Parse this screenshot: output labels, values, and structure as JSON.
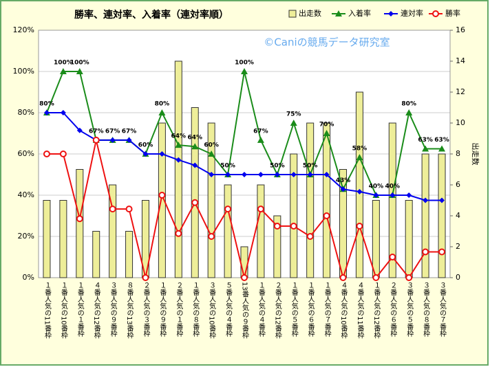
{
  "chart_data": {
    "type": "combo",
    "title": "勝率、連対率、入着率（連対率順）",
    "annotation": "©Caniの競馬データ研究室",
    "y2label": "出走数",
    "categories": [
      "１番人気の11番枠",
      "１番人気の10番枠",
      "１番人気の１番枠",
      "４番人気の12番枠",
      "３番人気の９番枠",
      "８番人気の13番枠",
      "２番人気の３番枠",
      "１番人気の９番枠",
      "２番人気の１番枠",
      "１番人気の８番枠",
      "３番人気の10番枠",
      "５番人気の４番枠",
      "13番人気の９番枠",
      "１番人気の４番枠",
      "２番人気の12番枠",
      "１番人気の５番枠",
      "１番人気の６番枠",
      "１番人気の７番枠",
      "４番人気の10番枠",
      "４番人気の11番枠",
      "１番人気の12番枠",
      "２番人気の６番枠",
      "３番人気の５番枠",
      "３番人気の８番枠",
      "３番人気の７番枠"
    ],
    "series": [
      {
        "name": "出走数",
        "type": "bar",
        "axis": "y2",
        "color": "#eeee99",
        "values": [
          5,
          5,
          7,
          3,
          6,
          3,
          5,
          10,
          14,
          11,
          10,
          6,
          2,
          6,
          4,
          8,
          10,
          10,
          7,
          12,
          5,
          10,
          5,
          8,
          8
        ]
      },
      {
        "name": "入着率",
        "type": "line",
        "marker": "triangle",
        "color": "#1a8c1a",
        "values": [
          80,
          100,
          100,
          66.7,
          66.7,
          66.7,
          60,
          80,
          64.3,
          63.6,
          60,
          50,
          100,
          66.7,
          50,
          75,
          50,
          70,
          42.9,
          58.3,
          40,
          40,
          80,
          62.5,
          62.5
        ],
        "value_labels": [
          "80%",
          "100%",
          "100%",
          "67%",
          "67%",
          "67%",
          "60%",
          "80%",
          "64%",
          "64%",
          "60%",
          "50%",
          "100%",
          "67%",
          "50%",
          "75%",
          "50%",
          "70%",
          "43%",
          "58%",
          "40%",
          "40%",
          "80%",
          "63%",
          "63%"
        ]
      },
      {
        "name": "連対率",
        "type": "line",
        "marker": "diamond",
        "color": "#0000ee",
        "values": [
          80,
          80,
          71.4,
          66.7,
          66.7,
          66.7,
          60,
          60,
          57.1,
          54.5,
          50,
          50,
          50,
          50,
          50,
          50,
          50,
          50,
          42.9,
          41.7,
          40,
          40,
          40,
          37.5,
          37.5
        ]
      },
      {
        "name": "勝率",
        "type": "line",
        "marker": "circle",
        "color": "#ee1111",
        "values": [
          60,
          60,
          28.6,
          66.7,
          33.3,
          33.3,
          0,
          40,
          21.4,
          36.4,
          20,
          33.3,
          0,
          33.3,
          25,
          25,
          20,
          30,
          0,
          25,
          0,
          10,
          0,
          12.5,
          12.5
        ]
      }
    ],
    "ylim": [
      0,
      120
    ],
    "yticks": [
      {
        "value": 0,
        "label": "0%"
      },
      {
        "value": 20,
        "label": "20%"
      },
      {
        "value": 40,
        "label": "40%"
      },
      {
        "value": 60,
        "label": "60%"
      },
      {
        "value": 80,
        "label": "80%"
      },
      {
        "value": 100,
        "label": "100%"
      },
      {
        "value": 120,
        "label": "120%"
      }
    ],
    "y2lim": [
      0,
      16
    ],
    "y2ticks": [
      0,
      2,
      4,
      6,
      8,
      10,
      12,
      14,
      16
    ],
    "grid": true
  }
}
